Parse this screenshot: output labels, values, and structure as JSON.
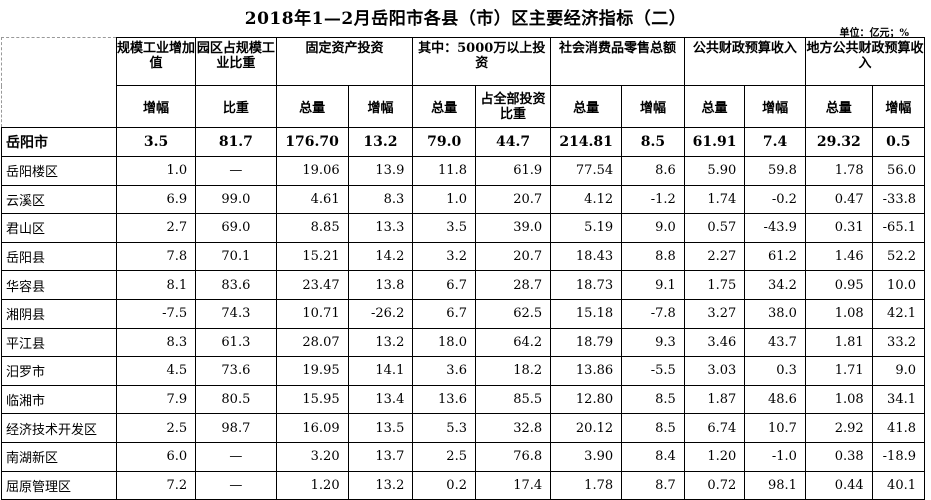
{
  "title": "2018年1—2月岳阳市各县（市）区主要经济指标（二）",
  "unit": "单位：亿元；%",
  "headers": {
    "groups": [
      "规模工业增加值",
      "园区占规模工业比重",
      "固定资产投资",
      "其中：5000万以上投资",
      "社会消费品零售总额",
      "公共财政预算收入",
      "地方公共财政预算收入"
    ],
    "sub": [
      "增幅",
      "比重",
      "总量",
      "增幅",
      "总量",
      "占全部投资比重",
      "总量",
      "增幅",
      "总量",
      "增幅",
      "总量",
      "增幅"
    ]
  },
  "rows": [
    {
      "name": "岳阳市",
      "v": [
        "3.5",
        "81.7",
        "176.70",
        "13.2",
        "79.0",
        "44.7",
        "214.81",
        "8.5",
        "61.91",
        "7.4",
        "29.32",
        "0.5"
      ]
    },
    {
      "name": "岳阳楼区",
      "v": [
        "1.0",
        "—",
        "19.06",
        "13.9",
        "11.8",
        "61.9",
        "77.54",
        "8.6",
        "5.90",
        "59.8",
        "1.78",
        "56.0"
      ]
    },
    {
      "name": "云溪区",
      "v": [
        "6.9",
        "99.0",
        "4.61",
        "8.3",
        "1.0",
        "20.7",
        "4.12",
        "-1.2",
        "1.74",
        "-0.2",
        "0.47",
        "-33.8"
      ]
    },
    {
      "name": "君山区",
      "v": [
        "2.7",
        "69.0",
        "8.85",
        "13.3",
        "3.5",
        "39.0",
        "5.19",
        "9.0",
        "0.57",
        "-43.9",
        "0.31",
        "-65.1"
      ]
    },
    {
      "name": "岳阳县",
      "v": [
        "7.8",
        "70.1",
        "15.21",
        "14.2",
        "3.2",
        "20.7",
        "18.43",
        "8.8",
        "2.27",
        "61.2",
        "1.46",
        "52.2"
      ]
    },
    {
      "name": "华容县",
      "v": [
        "8.1",
        "83.6",
        "23.47",
        "13.8",
        "6.7",
        "28.7",
        "18.73",
        "9.1",
        "1.75",
        "34.2",
        "0.95",
        "10.0"
      ]
    },
    {
      "name": "湘阴县",
      "v": [
        "-7.5",
        "74.3",
        "10.71",
        "-26.2",
        "6.7",
        "62.5",
        "15.18",
        "-7.8",
        "3.27",
        "38.0",
        "1.08",
        "42.1"
      ]
    },
    {
      "name": "平江县",
      "v": [
        "8.3",
        "61.3",
        "28.07",
        "13.2",
        "18.0",
        "64.2",
        "18.79",
        "9.3",
        "3.46",
        "43.7",
        "1.81",
        "33.2"
      ]
    },
    {
      "name": "汨罗市",
      "v": [
        "4.5",
        "73.6",
        "19.95",
        "14.1",
        "3.6",
        "18.2",
        "13.86",
        "-5.5",
        "3.03",
        "0.3",
        "1.71",
        "9.0"
      ]
    },
    {
      "name": "临湘市",
      "v": [
        "7.9",
        "80.5",
        "15.95",
        "13.4",
        "13.6",
        "85.5",
        "12.80",
        "8.5",
        "1.87",
        "48.6",
        "1.08",
        "34.1"
      ]
    },
    {
      "name": "经济技术开发区",
      "v": [
        "2.5",
        "98.7",
        "16.09",
        "13.5",
        "5.3",
        "32.8",
        "20.12",
        "8.5",
        "6.74",
        "10.7",
        "2.92",
        "41.8"
      ]
    },
    {
      "name": "南湖新区",
      "v": [
        "6.0",
        "—",
        "3.20",
        "13.7",
        "2.5",
        "76.8",
        "3.90",
        "8.4",
        "1.20",
        "-1.0",
        "0.38",
        "-18.9"
      ]
    },
    {
      "name": "屈原管理区",
      "v": [
        "7.2",
        "—",
        "1.20",
        "13.2",
        "0.2",
        "17.4",
        "1.78",
        "8.7",
        "0.72",
        "98.1",
        "0.44",
        "40.1"
      ]
    }
  ]
}
